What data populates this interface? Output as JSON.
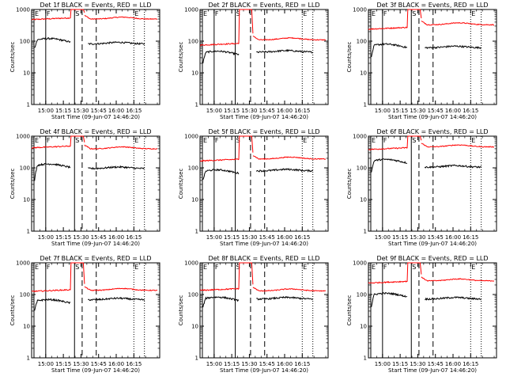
{
  "chart_data": {
    "type": "line",
    "layout": "3x3 grid",
    "xlabel": "Start Time (09-Jun-07 14:46:20)",
    "ylabel": "Counts/sec",
    "y_scale": "log",
    "ylim": [
      1,
      1000
    ],
    "y_ticks": [
      "1",
      "10",
      "100",
      "1000"
    ],
    "x_ticks": [
      "15:00",
      "15:15",
      "15:30",
      "15:45",
      "16:00",
      "16:15"
    ],
    "xlim_minutes_after_start": [
      -12,
      97
    ],
    "x_tick_minutes": [
      0,
      15,
      30,
      45,
      60,
      75
    ],
    "marker_labels": [
      "E",
      "F",
      "S",
      "E"
    ],
    "series_colors": {
      "events": "#000000",
      "lld": "#ff0000"
    },
    "panels": [
      {
        "title": "Det 1f BLACK = Events, RED = LLD",
        "markers": {
          "solid": [
            -10,
            0,
            24.5
          ],
          "dashed": [
            31,
            43
          ],
          "dotted": [
            75,
            84
          ]
        },
        "red_pre": 480,
        "red_post": 500,
        "black_pre": 105,
        "black_post": 82,
        "black_start": 60
      },
      {
        "title": "Det 2f BLACK = Events, RED = LLD",
        "markers": {
          "solid": [
            -10,
            0,
            18
          ],
          "dashed": [
            31,
            43
          ],
          "dotted": [
            75,
            84
          ]
        },
        "red_pre": 75,
        "red_post": 110,
        "black_pre": 42,
        "black_post": 45,
        "black_start": 20
      },
      {
        "title": "Det 3f BLACK = Events, RED = LLD",
        "markers": {
          "solid": [
            -10,
            0,
            24.5
          ],
          "dashed": [
            31,
            43
          ],
          "dotted": [
            75,
            84
          ]
        },
        "red_pre": 240,
        "red_post": 330,
        "black_pre": 70,
        "black_post": 62,
        "black_start": 30
      },
      {
        "title": "Det 4f BLACK = Events, RED = LLD",
        "markers": {
          "solid": [
            -10,
            0,
            24.5
          ],
          "dashed": [
            31,
            43
          ],
          "dotted": [
            75,
            84
          ]
        },
        "red_pre": 430,
        "red_post": 400,
        "black_pre": 115,
        "black_post": 95,
        "black_start": 40
      },
      {
        "title": "Det 5f BLACK = Events, RED = LLD",
        "markers": {
          "solid": [
            -10,
            0,
            18
          ],
          "dashed": [
            31,
            43
          ],
          "dotted": [
            75,
            84
          ]
        },
        "red_pre": 165,
        "red_post": 190,
        "black_pre": 75,
        "black_post": 80,
        "black_start": 40
      },
      {
        "title": "Det 6f BLACK = Events, RED = LLD",
        "markers": {
          "solid": [
            -10,
            0,
            24.5
          ],
          "dashed": [
            31,
            43
          ],
          "dotted": [
            75,
            84
          ]
        },
        "red_pre": 380,
        "red_post": 460,
        "black_pre": 160,
        "black_post": 105,
        "black_start": 70
      },
      {
        "title": "Det 7f BLACK = Events, RED = LLD",
        "markers": {
          "solid": [
            -10,
            0,
            24.5
          ],
          "dashed": [
            31,
            43
          ],
          "dotted": [
            75,
            84
          ]
        },
        "red_pre": 125,
        "red_post": 135,
        "black_pre": 60,
        "black_post": 68,
        "black_start": 30
      },
      {
        "title": "Det 8f BLACK = Events, RED = LLD",
        "markers": {
          "solid": [
            -10,
            0,
            18
          ],
          "dashed": [
            31,
            43
          ],
          "dotted": [
            75,
            84
          ]
        },
        "red_pre": 135,
        "red_post": 130,
        "black_pre": 72,
        "black_post": 72,
        "black_start": 40
      },
      {
        "title": "Det 9f BLACK = Events, RED = LLD",
        "markers": {
          "solid": [
            -10,
            0,
            24.5
          ],
          "dashed": [
            31,
            43
          ],
          "dotted": [
            75,
            84
          ]
        },
        "red_pre": 230,
        "red_post": 270,
        "black_pre": 95,
        "black_post": 72,
        "black_start": 40
      }
    ]
  }
}
